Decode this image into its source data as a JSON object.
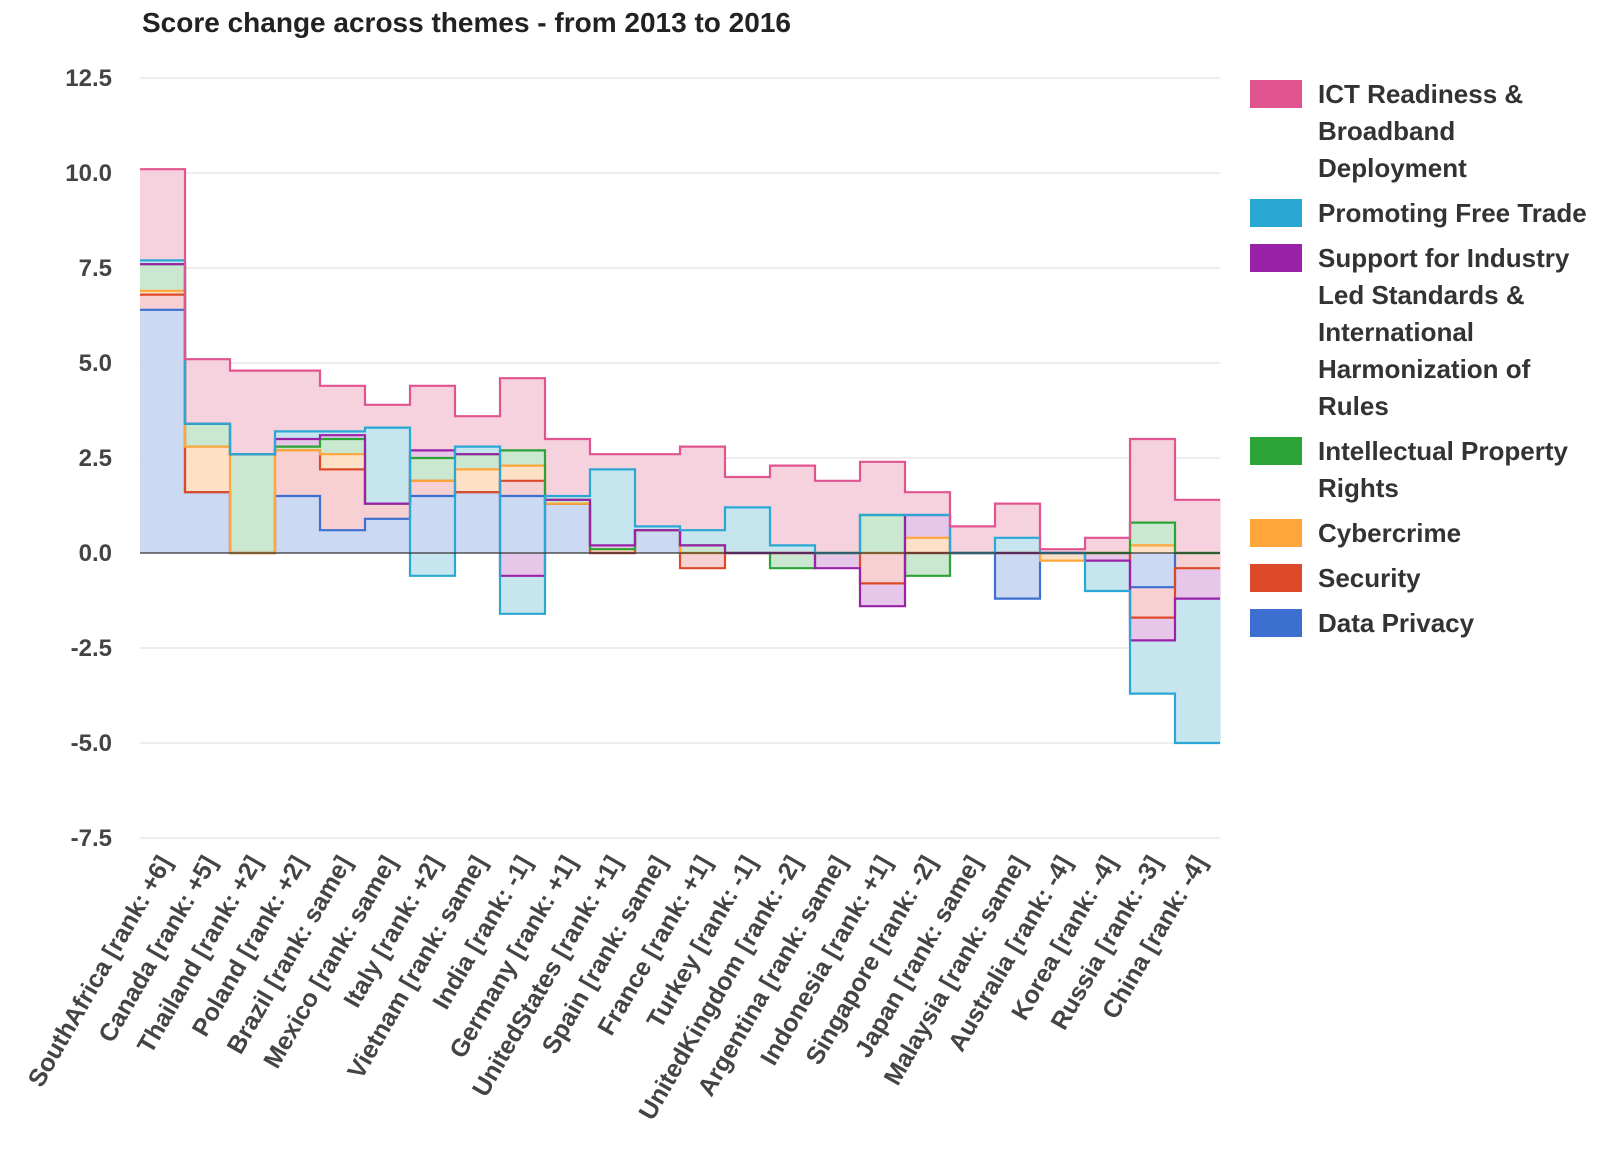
{
  "chart_data": {
    "type": "area",
    "title": "Score change across themes - from 2013 to 2016",
    "xlabel": "",
    "ylabel": "",
    "ylim": [
      -7.5,
      12.5
    ],
    "yticks": [
      "12.5",
      "10.0",
      "7.5",
      "5.0",
      "2.5",
      "0.0",
      "-2.5",
      "-5.0",
      "-7.5"
    ],
    "ytick_values": [
      12.5,
      10.0,
      7.5,
      5.0,
      2.5,
      0.0,
      -2.5,
      -5.0,
      -7.5
    ],
    "grid": true,
    "legend_position": "right",
    "stacked": true,
    "step": true,
    "categories": [
      "SouthAfrica [rank: +6]",
      "Canada [rank: +5]",
      "Thailand [rank: +2]",
      "Poland [rank: +2]",
      "Brazil [rank: same]",
      "Mexico [rank: same]",
      "Italy [rank: +2]",
      "Vietnam [rank: same]",
      "India [rank: -1]",
      "Germany [rank: +1]",
      "UnitedStates [rank: +1]",
      "Spain [rank: same]",
      "France [rank: +1]",
      "Turkey [rank: -1]",
      "UnitedKingdom [rank: -2]",
      "Argentina [rank: same]",
      "Indonesia [rank: +1]",
      "Singapore [rank: -2]",
      "Japan [rank: same]",
      "Malaysia [rank: same]",
      "Australia [rank: -4]",
      "Korea [rank: -4]",
      "Russia [rank: -3]",
      "China [rank: -4]"
    ],
    "series": [
      {
        "name": "Data Privacy",
        "line_color": "#3d6fd0",
        "fill_color": "#c9d7f2",
        "values": [
          6.4,
          1.6,
          0,
          1.5,
          0.6,
          0.9,
          1.5,
          1.6,
          1.5,
          1.3,
          0,
          0.6,
          0,
          0,
          0,
          0,
          0,
          0,
          0,
          -1.2,
          0,
          0,
          -0.9,
          0
        ]
      },
      {
        "name": "Security",
        "line_color": "#dd4a2a",
        "fill_color": "#f6cdd0",
        "values": [
          0.4,
          0,
          0,
          1.2,
          1.6,
          0.4,
          0.4,
          0,
          0.4,
          0,
          0,
          0,
          -0.4,
          0,
          0,
          0,
          -0.8,
          0,
          0,
          0,
          0,
          0,
          -0.8,
          -0.4
        ]
      },
      {
        "name": "Cybercrime",
        "line_color": "#ffa63a",
        "fill_color": "#fddfc4",
        "values": [
          0.1,
          1.2,
          0,
          0,
          0.4,
          0,
          0,
          0.6,
          0.4,
          0,
          0.1,
          0,
          0,
          0,
          0,
          0,
          0,
          0.4,
          0,
          0,
          -0.2,
          0,
          0.2,
          0
        ]
      },
      {
        "name": "Intellectual Property Rights",
        "line_color": "#2ba337",
        "fill_color": "#c7e6cc",
        "values": [
          0.7,
          0.6,
          2.6,
          0.1,
          0.4,
          0,
          0.6,
          0.4,
          0.4,
          0.1,
          0,
          0,
          0.2,
          0,
          -0.4,
          0,
          1.0,
          -0.6,
          0,
          0,
          0,
          0,
          0.6,
          0
        ]
      },
      {
        "name": "Support for Industry Led Standards & International Harmonization of Rules",
        "line_color": "#9a22a8",
        "fill_color": "#e6c4e8",
        "values": [
          0,
          0,
          0,
          0.2,
          0.1,
          0,
          0.2,
          0,
          -0.6,
          0,
          0.1,
          0,
          0,
          0,
          0,
          -0.4,
          -0.6,
          0.6,
          0,
          0,
          0,
          -0.2,
          -0.6,
          -0.8
        ]
      },
      {
        "name": "Promoting Free Trade",
        "line_color": "#2aa8d3",
        "fill_color": "#c3e4ee",
        "values": [
          0.1,
          0,
          0,
          0.2,
          0.1,
          2.0,
          -0.6,
          0.2,
          -1.0,
          0.1,
          2.0,
          0.1,
          0.4,
          1.2,
          0.2,
          0,
          0,
          0,
          0,
          0.4,
          0,
          -0.8,
          -1.4,
          -3.8
        ]
      },
      {
        "name": "ICT Readiness & Broadband Deployment",
        "line_color": "#e05590",
        "fill_color": "#f5cfdc",
        "values": [
          2.4,
          1.7,
          2.2,
          1.6,
          1.2,
          0.6,
          1.7,
          0.8,
          1.9,
          1.5,
          0.4,
          1.9,
          2.2,
          0.8,
          2.1,
          1.9,
          1.4,
          0.6,
          0.7,
          0.9,
          0.1,
          0.4,
          2.2,
          1.4
        ]
      }
    ],
    "legend_lines": [
      {
        "color": "#e05590",
        "lines": [
          "ICT Readiness &",
          "Broadband",
          "Deployment"
        ]
      },
      {
        "color": "#2aa8d3",
        "lines": [
          "Promoting Free Trade"
        ]
      },
      {
        "color": "#9a22a8",
        "lines": [
          "Support for Industry",
          "Led Standards &",
          "International",
          "Harmonization of",
          "Rules"
        ]
      },
      {
        "color": "#2ba337",
        "lines": [
          "Intellectual Property",
          "Rights"
        ]
      },
      {
        "color": "#ffa63a",
        "lines": [
          "Cybercrime"
        ]
      },
      {
        "color": "#dd4a2a",
        "lines": [
          "Security"
        ]
      },
      {
        "color": "#3d6fd0",
        "lines": [
          "Data Privacy"
        ]
      }
    ]
  }
}
